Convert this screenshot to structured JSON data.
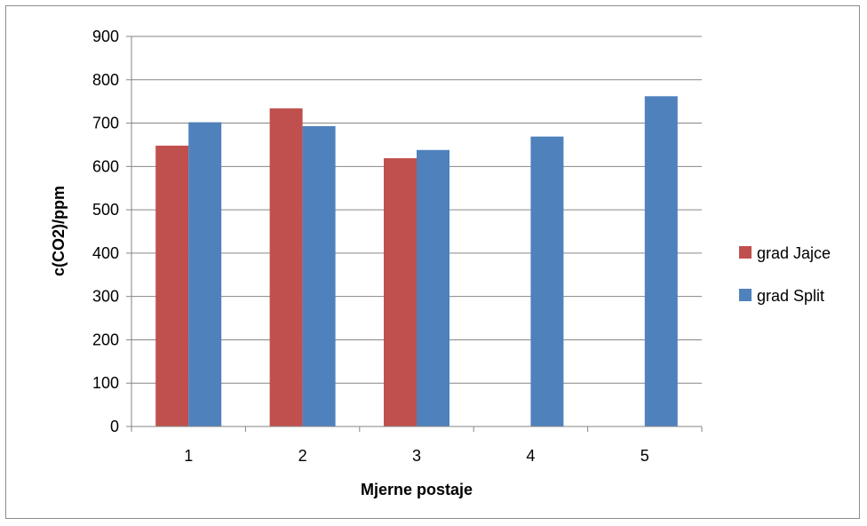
{
  "chart_data": {
    "type": "bar",
    "categories": [
      "1",
      "2",
      "3",
      "4",
      "5"
    ],
    "series": [
      {
        "name": "grad Jajce",
        "color": "#c0504d",
        "values": [
          648,
          734,
          619,
          null,
          null
        ]
      },
      {
        "name": "grad Split",
        "color": "#4f81bd",
        "values": [
          702,
          693,
          638,
          669,
          762
        ]
      }
    ],
    "xlabel": "Mjerne postaje",
    "ylabel": "c(CO2)/ppm",
    "ylim": [
      0,
      900
    ],
    "yticks": [
      0,
      100,
      200,
      300,
      400,
      500,
      600,
      700,
      800,
      900
    ],
    "grid": true,
    "legend_position": "right"
  }
}
